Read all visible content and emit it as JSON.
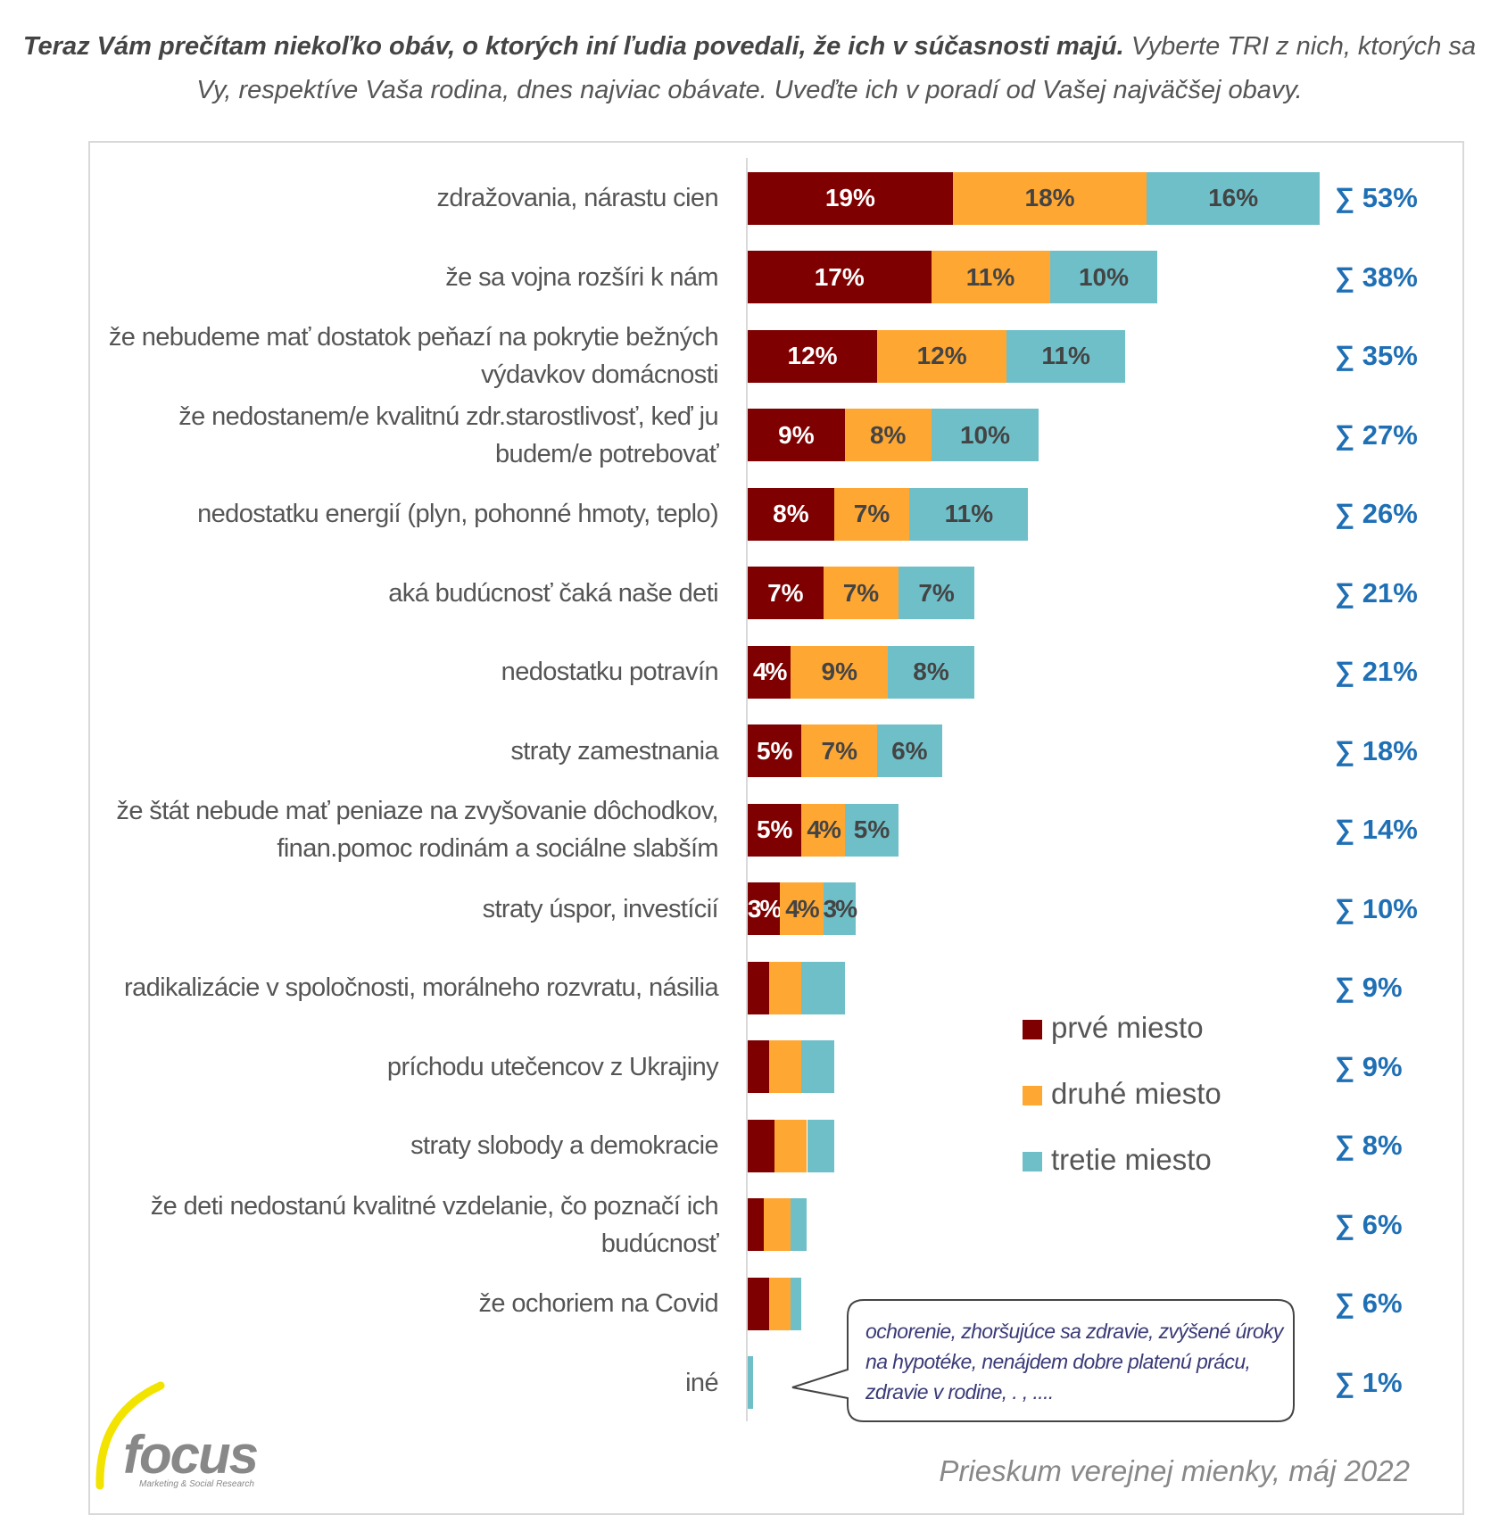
{
  "chart_data": {
    "type": "stacked-barh",
    "title": "Teraz Vám prečítam niekoľko obáv, o ktorých iní ľudia povedali, že ich v súčasnosti majú.",
    "subtitle": "Vyberte TRI z nich, ktorých sa Vy, respektíve Vaša rodina, dnes najviac obávate. Uveďte ich v poradí od Vašej najväčšej obavy.",
    "categories": [
      "zdražovania, nárastu cien",
      "že sa vojna rozšíri k nám",
      "že nebudeme mať dostatok peňazí na pokrytie bežných výdavkov domácnosti",
      "že nedostanem/e kvalitnú zdr.starostlivosť, keď ju budem/e potrebovať",
      "nedostatku energií (plyn, pohonné hmoty, teplo)",
      "aká budúcnosť čaká naše deti",
      "nedostatku potravín",
      "straty zamestnania",
      "že štát nebude mať peniaze na zvyšovanie dôchodkov, finan.pomoc rodinám a sociálne slabším",
      "straty úspor, investícií",
      "radikalizácie v spoločnosti, morálneho rozvratu, násilia",
      "príchodu utečencov z Ukrajiny",
      "straty slobody a demokracie",
      "že deti nedostanú kvalitné vzdelanie, čo poznačí ich budúcnosť",
      "že ochoriem na Covid",
      "iné"
    ],
    "series": [
      {
        "name": "prvé miesto",
        "color": "#7f0000",
        "values": [
          19,
          17,
          12,
          9,
          8,
          7,
          4,
          5,
          5,
          3,
          2,
          2,
          2.5,
          1.5,
          2,
          0
        ],
        "value_labels": [
          "19%",
          "17%",
          "12%",
          "9%",
          "8%",
          "7%",
          "4%",
          "5%",
          "5%",
          "3%",
          null,
          null,
          null,
          null,
          null,
          null
        ]
      },
      {
        "name": "druhé miesto",
        "color": "#ffa733",
        "values": [
          18,
          11,
          12,
          8,
          7,
          7,
          9,
          7,
          4,
          4,
          3,
          3,
          3,
          2.5,
          2,
          0
        ],
        "value_labels": [
          "18%",
          "11%",
          "12%",
          "8%",
          "7%",
          "7%",
          "9%",
          "7%",
          "4%",
          "4%",
          null,
          null,
          null,
          null,
          null,
          null
        ]
      },
      {
        "name": "tretie miesto",
        "color": "#6fbfc9",
        "values": [
          16,
          10,
          11,
          10,
          11,
          7,
          8,
          6,
          5,
          3,
          4,
          3,
          2.5,
          1.5,
          1,
          0.5
        ],
        "value_labels": [
          "16%",
          "10%",
          "11%",
          "10%",
          "11%",
          "7%",
          "8%",
          "6%",
          "5%",
          "3%",
          null,
          null,
          null,
          null,
          null,
          null
        ]
      }
    ],
    "totals": [
      "∑ 53%",
      "∑ 38%",
      "∑ 35%",
      "∑ 27%",
      "∑ 26%",
      "∑ 21%",
      "∑ 21%",
      "∑ 18%",
      "∑ 14%",
      "∑ 10%",
      "∑ 9%",
      "∑ 9%",
      "∑ 8%",
      "∑ 6%",
      "∑ 6%",
      "∑ 1%"
    ],
    "xlim": [
      0,
      55
    ],
    "legend": "center",
    "annotation": "ochorenie, zhoršujúce sa zdravie, zvýšené úroky na hypotéke, nenájdem dobre platenú prácu, zdravie v rodine, . , ....",
    "footer": "Prieskum verejnej mienky, máj 2022",
    "logo": {
      "name": "focus",
      "tagline": "Marketing & Social Research"
    }
  }
}
